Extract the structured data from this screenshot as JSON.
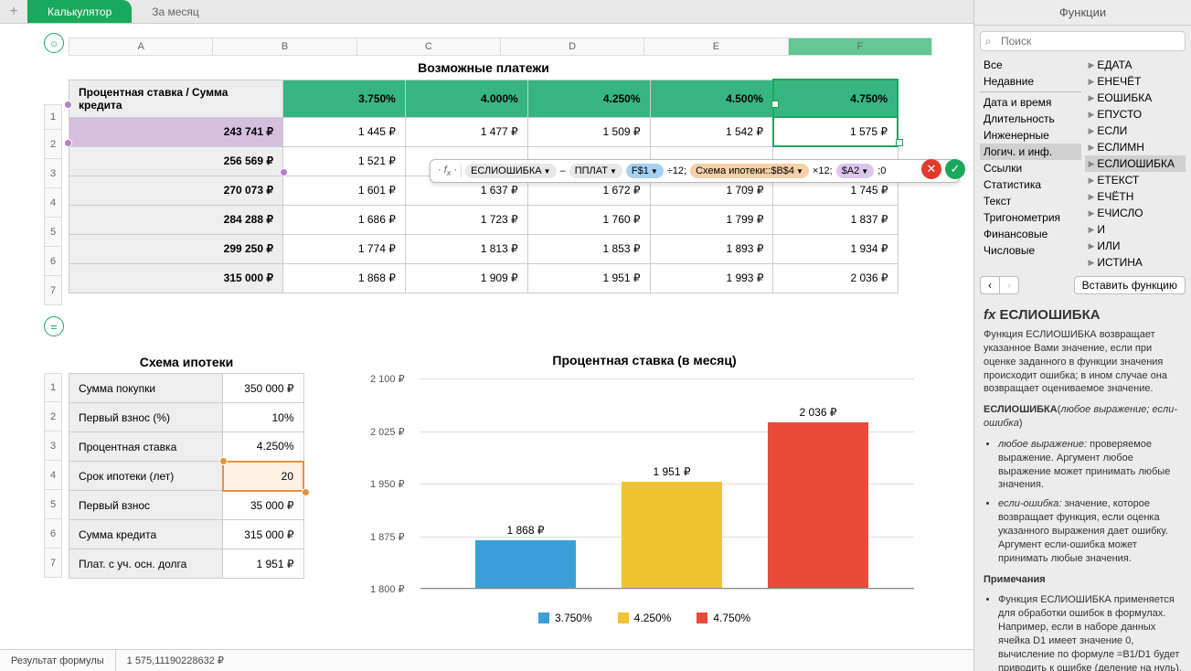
{
  "tabs": {
    "t1": "Калькулятор",
    "t2": "За месяц",
    "add": "+"
  },
  "side_title": "Функции",
  "search_ph": "Поиск",
  "cats_left": [
    "Все",
    "Недавние",
    "Дата и время",
    "Длительность",
    "Инженерные",
    "Логич. и инф.",
    "Ссылки",
    "Статистика",
    "Текст",
    "Тригонометрия",
    "Финансовые",
    "Числовые"
  ],
  "cats_right": [
    "ЕДАТА",
    "ЕНЕЧЁТ",
    "ЕОШИБКА",
    "ЕПУСТО",
    "ЕСЛИ",
    "ЕСЛИМН",
    "ЕСЛИОШИБКА",
    "ЕТЕКСТ",
    "ЕЧЁТН",
    "ЕЧИСЛО",
    "И",
    "ИЛИ",
    "ИСТИНА"
  ],
  "insert_fn": "Вставить функцию",
  "help": {
    "name": "ЕСЛИОШИБКА",
    "desc": "Функция ЕСЛИОШИБКА возвращает указанное Вами значение, если при оценке заданного в функции значения происходит ошибка; в ином случае она возвращает оцениваемое значение.",
    "sig": "ЕСЛИОШИБКА(любое выражение; если-ошибка)",
    "arg1_t": "любое выражение:",
    "arg1_d": " проверяемое выражение. Аргумент любое выражение может принимать любые значения.",
    "arg2_t": "если-ошибка:",
    "arg2_d": " значение, которое возвращает функция, если оценка указанного выражения дает ошибку. Аргумент если-ошибка может принимать любые значения.",
    "notes_t": "Примечания",
    "notes": "Функция ЕСЛИОШИБКА применяется для обработки ошибок в формулах. Например, если в наборе данных ячейка D1 имеет значение 0, вычисление по формуле =B1/D1 будет приводить к ошибке (деление на нуль). Этой ошибки"
  },
  "title1": "Возможные платежи",
  "cols": [
    "A",
    "B",
    "C",
    "D",
    "E",
    "F"
  ],
  "t1": {
    "hdr": [
      "Процентная ставка / Сумма кредита",
      "3.750%",
      "4.000%",
      "4.250%",
      "4.500%",
      "4.750%"
    ],
    "rows": [
      [
        "243 741 ₽",
        "1 445 ₽",
        "1 477 ₽",
        "1 509 ₽",
        "1 542 ₽",
        "1 575 ₽"
      ],
      [
        "256 569 ₽",
        "1 521 ₽",
        "",
        "",
        "",
        ""
      ],
      [
        "270 073 ₽",
        "1 601 ₽",
        "1 637 ₽",
        "1 672 ₽",
        "1 709 ₽",
        "1 745 ₽"
      ],
      [
        "284 288 ₽",
        "1 686 ₽",
        "1 723 ₽",
        "1 760 ₽",
        "1 799 ₽",
        "1 837 ₽"
      ],
      [
        "299 250 ₽",
        "1 774 ₽",
        "1 813 ₽",
        "1 853 ₽",
        "1 893 ₽",
        "1 934 ₽"
      ],
      [
        "315 000 ₽",
        "1 868 ₽",
        "1 909 ₽",
        "1 951 ₽",
        "1 993 ₽",
        "2 036 ₽"
      ]
    ]
  },
  "title2": "Схема ипотеки",
  "t2": {
    "rows": [
      [
        "Сумма покупки",
        "350 000 ₽"
      ],
      [
        "Первый взнос (%)",
        "10%"
      ],
      [
        "Процентная ставка",
        "4.250%"
      ],
      [
        "Срок ипотеки (лет)",
        "20"
      ],
      [
        "Первый взнос",
        "35 000 ₽"
      ],
      [
        "Сумма кредита",
        "315 000 ₽"
      ],
      [
        "Плат. с уч. осн. долга",
        "1 951 ₽"
      ]
    ]
  },
  "chart": {
    "title": "Процентная ставка (в месяц)",
    "ylim": [
      1800,
      2100
    ],
    "yticks": [
      "2 100 ₽",
      "2 025 ₽",
      "1 950 ₽",
      "1 875 ₽",
      "1 800 ₽"
    ],
    "bars": [
      {
        "label": "3.750%",
        "value": 1868,
        "text": "1 868 ₽",
        "color": "#3a9fd6",
        "x": 60
      },
      {
        "label": "4.250%",
        "value": 1951,
        "text": "1 951 ₽",
        "color": "#f0c330",
        "x": 220
      },
      {
        "label": "4.750%",
        "value": 2036,
        "text": "2 036 ₽",
        "color": "#e84b3a",
        "x": 380
      }
    ]
  },
  "formula": {
    "fn": "ЕСЛИОШИБКА",
    "sub": "ППЛАТ",
    "ref1": "F$1",
    "txt1": "÷12;",
    "ref2": "Схема ипотеки::$B$4",
    "txt2": "×12;",
    "ref3": "$A2",
    "txt3": ";0"
  },
  "status": {
    "l": "Результат формулы",
    "v": "1 575,11190228632 ₽"
  },
  "colors": {
    "green": "#1aa85c",
    "orange": "#e89040",
    "purple": "#b57fc9"
  }
}
